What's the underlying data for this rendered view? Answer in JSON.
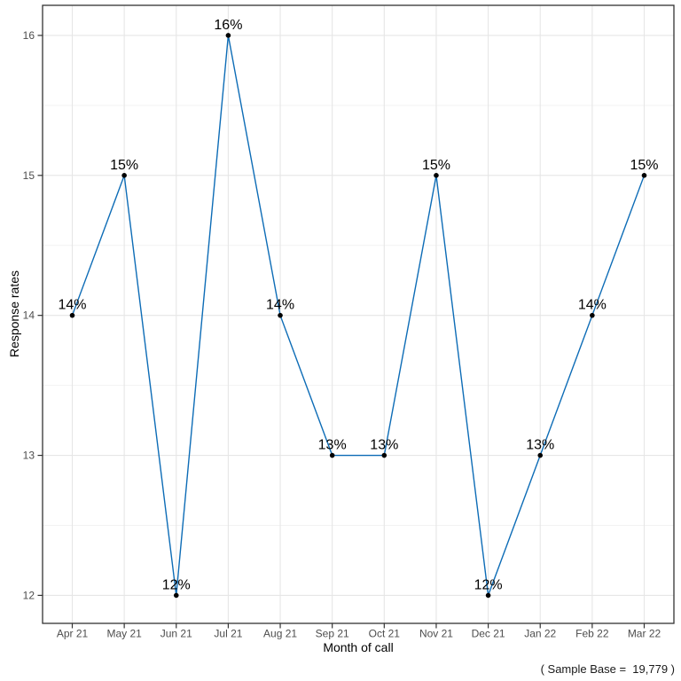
{
  "chart_data": {
    "type": "line",
    "title": "",
    "xlabel": "Month of call",
    "ylabel": "Response rates",
    "caption": "( Sample Base =  19,779 )",
    "categories": [
      "Apr 21",
      "May 21",
      "Jun 21",
      "Jul 21",
      "Aug 21",
      "Sep 21",
      "Oct 21",
      "Nov 21",
      "Dec 21",
      "Jan 22",
      "Feb 22",
      "Mar 22"
    ],
    "values": [
      14,
      15,
      12,
      16,
      14,
      13,
      13,
      15,
      12,
      13,
      14,
      15
    ],
    "point_labels": [
      "14%",
      "15%",
      "12%",
      "16%",
      "14%",
      "13%",
      "13%",
      "15%",
      "12%",
      "13%",
      "14%",
      "15%"
    ],
    "yticks": [
      12,
      13,
      14,
      15,
      16
    ],
    "yticks_minor": [
      12.5,
      13.5,
      14.5,
      15.5
    ],
    "ylim": [
      11.8,
      16.215
    ],
    "grid": "major-and-minor",
    "legend_position": "none",
    "colors": {
      "line": "#0d6cb6",
      "point": "#000000",
      "data_label": "#000000",
      "grid_major": "#e6e6e6",
      "grid_minor": "#f2f2f2",
      "panel_border": "#333333",
      "tick_mark": "#333333",
      "tick_label": "#4d4d4d",
      "background": "#ffffff"
    }
  }
}
